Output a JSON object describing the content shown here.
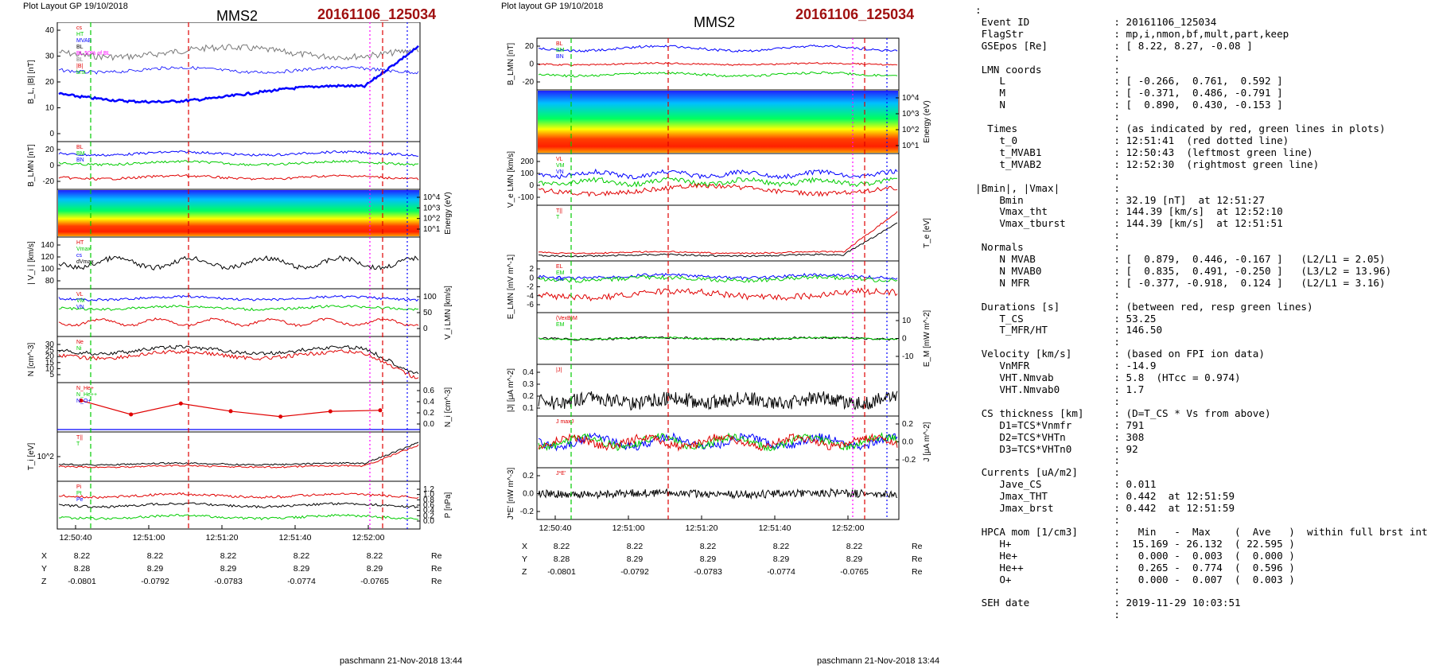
{
  "left": {
    "header": "Plot Layout GP 19/10/2018",
    "title": "MMS2",
    "event": "20161106_125034",
    "footer": "paschmann 21-Nov-2018 13:44",
    "time_ticks": [
      "12:50:40",
      "12:51:00",
      "12:51:20",
      "12:51:40",
      "12:52:00"
    ],
    "pos_rows": [
      {
        "label": "X",
        "values": [
          "8.22",
          "8.22",
          "8.22",
          "8.22",
          "8.22"
        ],
        "unit": "Re"
      },
      {
        "label": "Y",
        "values": [
          "8.28",
          "8.29",
          "8.29",
          "8.29",
          "8.29"
        ],
        "unit": "Re"
      },
      {
        "label": "Z",
        "values": [
          "-0.0801",
          "-0.0792",
          "-0.0783",
          "-0.0774",
          "-0.0765"
        ],
        "unit": "Re"
      }
    ],
    "panels": [
      {
        "ylabel": "B_L, |B| [nT]",
        "ticks": [
          "40",
          "30",
          "20",
          "10",
          "0"
        ],
        "legend": [
          "cs",
          "HT",
          "MVAB",
          "BL",
          "BL 50% of BL",
          "BL",
          "|B|",
          "brst"
        ],
        "side": "left"
      },
      {
        "ylabel": "B_LMN [nT]",
        "ticks": [
          "20",
          "0",
          "-20"
        ],
        "legend": [
          "BL",
          "BM",
          "BN"
        ],
        "side": "left"
      },
      {
        "ylabel": "Energy (eV)",
        "ticks": [
          "10^4",
          "10^3",
          "10^2",
          "10^1"
        ],
        "legend": [],
        "side": "right"
      },
      {
        "ylabel": "| V_i | [km/s]",
        "ticks": [
          "140",
          "120",
          "100",
          "80"
        ],
        "legend": [
          "HT",
          "Vmax",
          "cs",
          "dVmax"
        ],
        "side": "left"
      },
      {
        "ylabel": "V_i LMN [km/s]",
        "ticks": [
          "100",
          "50",
          "0"
        ],
        "legend": [
          "VL",
          "VM",
          "VN"
        ],
        "side": "right"
      },
      {
        "ylabel": "N [cm^-3]",
        "ticks": [
          "30",
          "25",
          "20",
          "15",
          "10",
          "5"
        ],
        "legend": [
          "Ne",
          "Ni"
        ],
        "side": "left"
      },
      {
        "ylabel": "N_i [cm^-3]",
        "ticks": [
          "0.6",
          "0.4",
          "0.2",
          "0.0"
        ],
        "legend": [
          "N_He+",
          "N_He++",
          "N_O+"
        ],
        "side": "right"
      },
      {
        "ylabel": "T_i [eV]",
        "ticks": [
          "10^2"
        ],
        "legend": [
          "T||",
          "T"
        ],
        "side": "left"
      },
      {
        "ylabel": "P [nPa]",
        "ticks": [
          "1.2",
          "1.0",
          "0.8",
          "0.6",
          "0.4",
          "0.2",
          "0.0"
        ],
        "legend": [
          "Pi",
          "Pt",
          "Pe"
        ],
        "side": "right"
      }
    ]
  },
  "middle": {
    "header": "Plot layout GP 19/10/2018",
    "title": "MMS2",
    "event": "20161106_125034",
    "footer": "paschmann 21-Nov-2018 13:44",
    "time_ticks": [
      "12:50:40",
      "12:51:00",
      "12:51:20",
      "12:51:40",
      "12:52:00"
    ],
    "pos_rows": [
      {
        "label": "X",
        "values": [
          "8.22",
          "8.22",
          "8.22",
          "8.22",
          "8.22"
        ],
        "unit": "Re"
      },
      {
        "label": "Y",
        "values": [
          "8.28",
          "8.29",
          "8.29",
          "8.29",
          "8.29"
        ],
        "unit": "Re"
      },
      {
        "label": "Z",
        "values": [
          "-0.0801",
          "-0.0792",
          "-0.0783",
          "-0.0774",
          "-0.0765"
        ],
        "unit": "Re"
      }
    ],
    "panels": [
      {
        "ylabel": "B_LMN [nT]",
        "ticks": [
          "20",
          "0",
          "-20"
        ],
        "legend": [
          "BL",
          "BM",
          "BN"
        ],
        "side": "left"
      },
      {
        "ylabel": "Energy (eV)",
        "ticks": [
          "10^4",
          "10^3",
          "10^2",
          "10^1"
        ],
        "legend": [],
        "side": "right"
      },
      {
        "ylabel": "V_e LMN [km/s]",
        "ticks": [
          "200",
          "100",
          "0",
          "-100"
        ],
        "legend": [
          "VL",
          "VM",
          "VN"
        ],
        "side": "left"
      },
      {
        "ylabel": "T_e [eV]",
        "ticks": [],
        "legend": [
          "T||",
          "T"
        ],
        "side": "right"
      },
      {
        "ylabel": "E_LMN [mV m^-1]",
        "ticks": [
          "2",
          "0",
          "-2",
          "-4",
          "-6"
        ],
        "legend": [
          "EL",
          "EM",
          "EN"
        ],
        "side": "left"
      },
      {
        "ylabel": "E_M [mW m^-2]",
        "ticks": [
          "10",
          "0",
          "-10"
        ],
        "legend": [
          "(VexB)M",
          "EM"
        ],
        "side": "right"
      },
      {
        "ylabel": "|J| [μA m^-2]",
        "ticks": [
          "0.4",
          "0.3",
          "0.2",
          "0.1"
        ],
        "legend": [
          "|J|"
        ],
        "side": "left"
      },
      {
        "ylabel": "J [μA m^-2]",
        "ticks": [
          "0.2",
          "0.0",
          "-0.2"
        ],
        "legend": [
          "J maxJ"
        ],
        "side": "right"
      },
      {
        "ylabel": "J*E' [nW m^-3]",
        "ticks": [
          "0.2",
          "0.0",
          "-0.2"
        ],
        "legend": [
          "J*E'"
        ],
        "side": "left"
      }
    ]
  },
  "info_lines": [
    ":",
    " Event ID              : 20161106_125034",
    " FlagStr               : mp,i,nmon,bf,mult,part,keep",
    " GSEpos [Re]           : [ 8.22, 8.27, -0.08 ]",
    "                       :",
    " LMN coords            :",
    "    L                  : [ -0.266,  0.761,  0.592 ]",
    "    M                  : [ -0.371,  0.486, -0.791 ]",
    "    N                  : [  0.890,  0.430, -0.153 ]",
    "                       :",
    "  Times                : (as indicated by red, green lines in plots)",
    "    t_0                : 12:51:41  (red dotted line)",
    "    t_MVAB1            : 12:50:43  (leftmost green line)",
    "    t_MVAB2            : 12:52:30  (rightmost green line)",
    "                       :",
    "|Bmin|, |Vmax|         :",
    "    Bmin               : 32.19 [nT]  at 12:51:27",
    "    Vmax_tht           : 144.39 [km/s]  at 12:52:10",
    "    Vmax_tburst        : 144.39 [km/s]  at 12:51:51",
    "                       :",
    " Normals               :",
    "    N MVAB             : [  0.879,  0.446, -0.167 ]   (L2/L1 = 2.05)",
    "    N MVAB0            : [  0.835,  0.491, -0.250 ]   (L3/L2 = 13.96)",
    "    N MFR              : [ -0.377, -0.918,  0.124 ]   (L2/L1 = 3.16)",
    "                       :",
    " Durations [s]         : (between red, resp green lines)",
    "    T_CS               : 53.25",
    "    T_MFR/HT           : 146.50",
    "                       :",
    " Velocity [km/s]       : (based on FPI ion data)",
    "    VnMFR              : -14.9",
    "    VHT.Nmvab          : 5.8  (HTcc = 0.974)",
    "    VHT.Nmvab0         : 1.7",
    "                       :",
    " CS thickness [km]     : (D=T_CS * Vs from above)",
    "    D1=TCS*Vnmfr       : 791",
    "    D2=TCS*VHTn        : 308",
    "    D3=TCS*VHTn0       : 92",
    "                       :",
    " Currents [uA/m2]      :",
    "    Jave_CS            : 0.011",
    "    Jmax_THT           : 0.442  at 12:51:59",
    "    Jmax_brst          : 0.442  at 12:51:59",
    "                       :",
    " HPCA mom [1/cm3]      :   Min   -  Max    (  Ave   )  within full brst int",
    "    H+                 :  15.169 - 26.132  ( 22.595 )",
    "    He+                :   0.000 -  0.003  (  0.000 )",
    "    He++               :   0.265 -  0.774  (  0.596 )",
    "    O+                 :   0.000 -  0.007  (  0.003 )",
    "                       :",
    " SEH date              : 2019-11-29 10:03:51",
    "                       :"
  ],
  "colors": {
    "red": "#e00000",
    "green": "#00cc00",
    "blue": "#0000ff",
    "magenta": "#ff00ff",
    "black": "#000000",
    "gray": "#777777",
    "event": "#a01010"
  }
}
